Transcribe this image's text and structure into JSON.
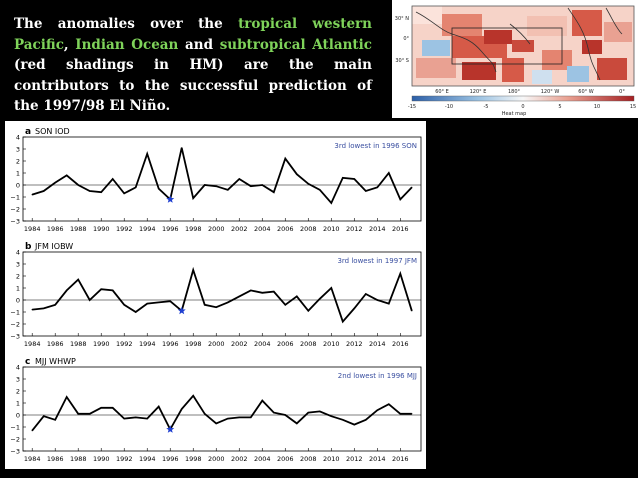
{
  "headline": {
    "p1": "The anomalies over the ",
    "h1": "tropical western Pacific",
    "p2": ", ",
    "h2": "Indian Ocean",
    "p3": " and ",
    "h3": "subtropical Atlantic",
    "p4": " (red shadings in HM) are the main contributors to the successful prediction of the 1997/98 El Niño."
  },
  "colors": {
    "highlight": "#7fd35a",
    "line": "#000000",
    "star": "#1f3fd0",
    "note": "#3a4fa0"
  },
  "heatmap": {
    "lat_labels": [
      "30° N",
      "0°",
      "30° S"
    ],
    "lon_labels": [
      "60° E",
      "120° E",
      "180°",
      "120° W",
      "60° W",
      "0°"
    ],
    "colorbar_ticks": [
      "-15",
      "-10",
      "-5",
      "0",
      "5",
      "10",
      "15"
    ],
    "colorbar_label": "Heat map"
  },
  "chart_data": [
    {
      "type": "line",
      "panel": "a",
      "title": "SON IOD",
      "annotation": "3rd lowest in 1996 SON",
      "x": [
        1984,
        1985,
        1986,
        1987,
        1988,
        1989,
        1990,
        1991,
        1992,
        1993,
        1994,
        1995,
        1996,
        1997,
        1998,
        1999,
        2000,
        2001,
        2002,
        2003,
        2004,
        2005,
        2006,
        2007,
        2008,
        2009,
        2010,
        2011,
        2012,
        2013,
        2014,
        2015,
        2016,
        2017
      ],
      "values": [
        -0.8,
        -0.5,
        0.2,
        0.8,
        0.0,
        -0.5,
        -0.6,
        0.5,
        -0.7,
        -0.2,
        2.6,
        -0.3,
        -1.2,
        3.1,
        -1.1,
        0.0,
        -0.1,
        -0.4,
        0.5,
        -0.1,
        0.0,
        -0.6,
        2.2,
        0.9,
        0.1,
        -0.4,
        -1.5,
        0.6,
        0.5,
        -0.5,
        -0.2,
        1.0,
        -1.2,
        -0.2
      ],
      "highlight": {
        "x": 1996,
        "y": -1.2
      },
      "ylim": [
        -3,
        4
      ],
      "yticks": [
        "4",
        "3",
        "2",
        "1",
        "0",
        "−1",
        "−2",
        "−3"
      ],
      "xticks": [
        "1984",
        "1986",
        "1988",
        "1990",
        "1992",
        "1994",
        "1996",
        "1998",
        "2000",
        "2002",
        "2004",
        "2006",
        "2008",
        "2010",
        "2012",
        "2014",
        "2016"
      ]
    },
    {
      "type": "line",
      "panel": "b",
      "title": "JFM IOBW",
      "annotation": "3rd lowest in 1997 JFM",
      "x": [
        1984,
        1985,
        1986,
        1987,
        1988,
        1989,
        1990,
        1991,
        1992,
        1993,
        1994,
        1995,
        1996,
        1997,
        1998,
        1999,
        2000,
        2001,
        2002,
        2003,
        2004,
        2005,
        2006,
        2007,
        2008,
        2009,
        2010,
        2011,
        2012,
        2013,
        2014,
        2015,
        2016,
        2017
      ],
      "values": [
        -0.8,
        -0.7,
        -0.4,
        0.8,
        1.7,
        0.0,
        0.9,
        0.8,
        -0.4,
        -1.0,
        -0.3,
        -0.2,
        -0.1,
        -0.9,
        2.5,
        -0.4,
        -0.6,
        -0.2,
        0.3,
        0.8,
        0.6,
        0.7,
        -0.4,
        0.3,
        -0.9,
        0.1,
        1.0,
        -1.8,
        -0.7,
        0.5,
        0.0,
        -0.3,
        2.2,
        -0.9
      ],
      "highlight": {
        "x": 1997,
        "y": -0.9
      },
      "ylim": [
        -3,
        4
      ],
      "yticks": [
        "4",
        "3",
        "2",
        "1",
        "0",
        "−1",
        "−2",
        "−3"
      ],
      "xticks": [
        "1984",
        "1986",
        "1988",
        "1990",
        "1992",
        "1994",
        "1996",
        "1998",
        "2000",
        "2002",
        "2004",
        "2006",
        "2008",
        "2010",
        "2012",
        "2014",
        "2016"
      ]
    },
    {
      "type": "line",
      "panel": "c",
      "title": "MJJ WHWP",
      "annotation": "2nd lowest in 1996 MJJ",
      "x": [
        1984,
        1985,
        1986,
        1987,
        1988,
        1989,
        1990,
        1991,
        1992,
        1993,
        1994,
        1995,
        1996,
        1997,
        1998,
        1999,
        2000,
        2001,
        2002,
        2003,
        2004,
        2005,
        2006,
        2007,
        2008,
        2009,
        2010,
        2011,
        2012,
        2013,
        2014,
        2015,
        2016,
        2017
      ],
      "values": [
        -1.3,
        -0.1,
        -0.4,
        1.5,
        0.1,
        0.1,
        0.6,
        0.6,
        -0.3,
        -0.2,
        -0.3,
        0.7,
        -1.2,
        0.5,
        1.6,
        0.1,
        -0.7,
        -0.3,
        -0.2,
        -0.2,
        1.2,
        0.2,
        0.0,
        -0.7,
        0.2,
        0.3,
        -0.1,
        -0.4,
        -0.8,
        -0.4,
        0.4,
        0.9,
        0.1,
        0.1
      ],
      "highlight": {
        "x": 1996,
        "y": -1.2
      },
      "ylim": [
        -3,
        4
      ],
      "yticks": [
        "4",
        "3",
        "2",
        "1",
        "0",
        "−1",
        "−2",
        "−3"
      ],
      "xticks": [
        "1984",
        "1986",
        "1988",
        "1990",
        "1992",
        "1994",
        "1996",
        "1998",
        "2000",
        "2002",
        "2004",
        "2006",
        "2008",
        "2010",
        "2012",
        "2014",
        "2016"
      ]
    }
  ]
}
